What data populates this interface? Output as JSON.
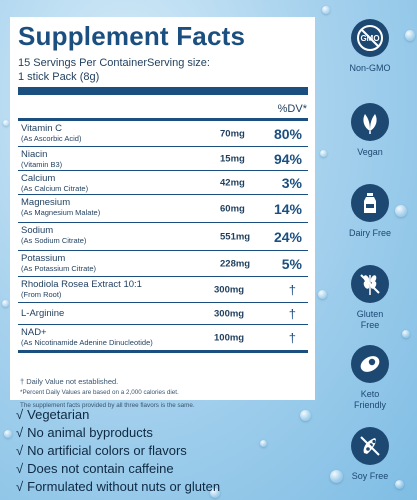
{
  "facts": {
    "title": "Supplement Facts",
    "serving_line1": "15 Servings Per ContainerServing size:",
    "serving_line2": "1 stick Pack (8g)",
    "dv_header": "%DV*",
    "rows": [
      {
        "name": "Vitamin C",
        "sub": "(As Ascorbic Acid)",
        "amount": "70mg",
        "dv": "80%"
      },
      {
        "name": "Niacin",
        "sub": "(Vitamin B3)",
        "amount": "15mg",
        "dv": "94%"
      },
      {
        "name": "Calcium",
        "sub": "(As Calcium Citrate)",
        "amount": "42mg",
        "dv": "3%"
      },
      {
        "name": "Magnesium",
        "sub": "(As Magnesium Malate)",
        "amount": "60mg",
        "dv": "14%"
      },
      {
        "name": "Sodium",
        "sub": "(As Sodium Citrate)",
        "amount": "551mg",
        "dv": "24%"
      },
      {
        "name": "Potassium",
        "sub": "(As Potassium Citrate)",
        "amount": "228mg",
        "dv": "5%"
      },
      {
        "name": "Rhodiola Rosea Extract 10:1",
        "sub": "(From Root)",
        "amount": "300mg",
        "dv": "†"
      },
      {
        "name": "L-Arginine",
        "sub": "",
        "amount": "300mg",
        "dv": "†"
      },
      {
        "name": "NAD+",
        "sub": "(As Nicotinamide Adenine Dinucleotide)",
        "amount": "100mg",
        "dv": "†"
      }
    ],
    "footnote1": "† Daily Value not established.",
    "footnote2": "*Percent Daily Values are based on a 2,000 calories diet.",
    "footnote3": "The supplement facts provided by all three flavors is the same."
  },
  "claims": {
    "check": "√",
    "items": [
      "Vegetarian",
      "No animal byproducts",
      "No artificial colors or flavors",
      "Does not contain caffeine",
      "Formulated without nuts or gluten"
    ]
  },
  "badges": [
    {
      "icon": "no-gmo-icon",
      "glyph": "GMO",
      "label": "Non-GMO"
    },
    {
      "icon": "vegan-leaf-icon",
      "label": "Vegan"
    },
    {
      "icon": "dairy-free-icon",
      "label": "Dairy Free"
    },
    {
      "icon": "gluten-free-icon",
      "label": "Gluten Free"
    },
    {
      "icon": "keto-friendly-icon",
      "label": "Keto Friendly"
    },
    {
      "icon": "soy-free-icon",
      "label": "Soy Free"
    }
  ],
  "colors": {
    "navy": "#1b4f80",
    "badge": "#1d4872"
  }
}
